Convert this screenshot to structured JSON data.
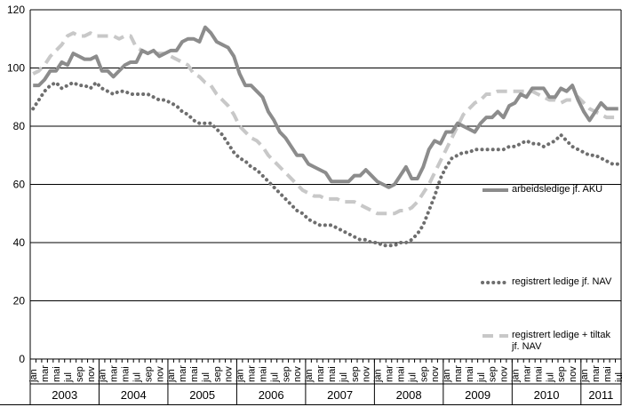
{
  "chart_data": {
    "type": "line",
    "categories": [
      "jan",
      null,
      "mar",
      null,
      "mai",
      null,
      "jul",
      null,
      "sep",
      null,
      "nov",
      null,
      "jan",
      null,
      "mar",
      null,
      "mai",
      null,
      "jul",
      null,
      "sep",
      null,
      "nov",
      null,
      "jan",
      null,
      "mar",
      null,
      "mai",
      null,
      "jul",
      null,
      "sep",
      null,
      "nov",
      null,
      "jan",
      null,
      "mar",
      null,
      "mai",
      null,
      "jul",
      null,
      "sep",
      null,
      "nov",
      null,
      "jan",
      null,
      "mar",
      null,
      "mai",
      null,
      "jul",
      null,
      "sep",
      null,
      "nov",
      null,
      "jan",
      null,
      "mar",
      null,
      "mai",
      null,
      "jul",
      null,
      "sep",
      null,
      "nov",
      null,
      "jan",
      null,
      "mar",
      null,
      "mai",
      null,
      "jul",
      null,
      "sep",
      null,
      "nov",
      null,
      "jan",
      null,
      "mar",
      null,
      "mai",
      null,
      "jul",
      null,
      "sep",
      null,
      "nov",
      null,
      "jan",
      null,
      "mar",
      null,
      "mai",
      null,
      "jul"
    ],
    "years": [
      "2003",
      "2004",
      "2005",
      "2006",
      "2007",
      "2008",
      "2009",
      "2010",
      "2011"
    ],
    "series": [
      {
        "name": "arbeidsledige jf. AKU",
        "color": "#8c8c8c",
        "style": "solid",
        "values": [
          94,
          94,
          96,
          99,
          99,
          102,
          101,
          105,
          104,
          103,
          103,
          104,
          99,
          99,
          97,
          99,
          101,
          102,
          102,
          106,
          105,
          106,
          104,
          105,
          106,
          106,
          109,
          110,
          110,
          109,
          114,
          112,
          109,
          108,
          107,
          104,
          98,
          94,
          94,
          92,
          90,
          85,
          82,
          78,
          76,
          73,
          70,
          70,
          67,
          66,
          65,
          64,
          61,
          61,
          61,
          61,
          63,
          63,
          65,
          63,
          61,
          60,
          59,
          60,
          63,
          66,
          62,
          62,
          66,
          72,
          75,
          74,
          78,
          78,
          81,
          80,
          79,
          78,
          81,
          83,
          83,
          85,
          83,
          87,
          88,
          91,
          90,
          93,
          93,
          93,
          90,
          90,
          93,
          92,
          94,
          89,
          85,
          82,
          85,
          88,
          86,
          86,
          86
        ]
      },
      {
        "name": "registrert ledige jf. NAV",
        "color": "#6e6e6e",
        "style": "dotted",
        "values": [
          86,
          89,
          92,
          94,
          95,
          93,
          94,
          95,
          94,
          94,
          93,
          95,
          93,
          92,
          91,
          92,
          92,
          91,
          91,
          91,
          91,
          90,
          89,
          89,
          88,
          87,
          85,
          84,
          82,
          81,
          81,
          81,
          79,
          77,
          74,
          71,
          69,
          68,
          66,
          65,
          63,
          61,
          59,
          57,
          55,
          53,
          51,
          50,
          48,
          47,
          46,
          46,
          46,
          45,
          44,
          43,
          42,
          41,
          41,
          40,
          40,
          39,
          39,
          39,
          40,
          40,
          41,
          43,
          46,
          51,
          56,
          62,
          66,
          69,
          70,
          71,
          71,
          72,
          72,
          72,
          72,
          72,
          72,
          73,
          73,
          74,
          75,
          74,
          74,
          73,
          74,
          75,
          77,
          75,
          73,
          72,
          71,
          70,
          70,
          69,
          68,
          67,
          67
        ]
      },
      {
        "name": "registrert ledige + tiltak jf. NAV",
        "color": "#c8c8c8",
        "style": "dashed",
        "values": [
          98,
          99,
          101,
          104,
          106,
          108,
          111,
          112,
          111,
          111,
          112,
          111,
          111,
          111,
          111,
          110,
          111,
          111,
          107,
          106,
          105,
          105,
          105,
          105,
          104,
          103,
          102,
          101,
          98,
          97,
          95,
          94,
          91,
          89,
          87,
          84,
          80,
          78,
          76,
          75,
          73,
          70,
          68,
          66,
          64,
          62,
          60,
          58,
          57,
          56,
          56,
          55,
          55,
          55,
          54,
          54,
          54,
          53,
          52,
          51,
          50,
          50,
          50,
          50,
          51,
          51,
          52,
          54,
          57,
          60,
          64,
          68,
          72,
          76,
          80,
          84,
          86,
          88,
          89,
          91,
          91,
          92,
          92,
          92,
          92,
          92,
          92,
          92,
          91,
          90,
          89,
          89,
          88,
          89,
          89,
          90,
          88,
          86,
          85,
          84,
          83,
          83,
          83
        ]
      }
    ],
    "ylim": [
      0,
      120
    ],
    "yticks": [
      0,
      20,
      40,
      60,
      80,
      100,
      120
    ],
    "grid": true
  }
}
